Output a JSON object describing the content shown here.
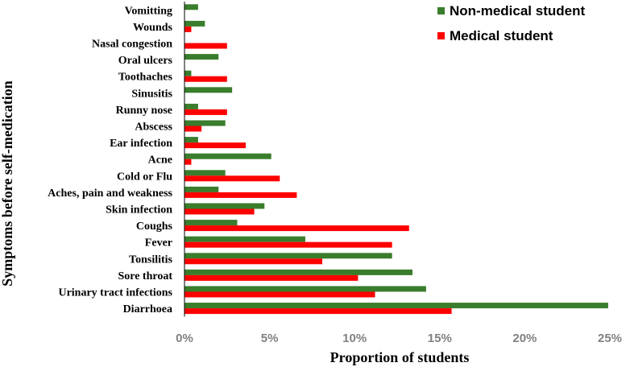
{
  "chart_data": {
    "type": "bar",
    "orientation": "horizontal",
    "categories": [
      "Vomitting",
      "Wounds",
      "Nasal congestion",
      "Oral ulcers",
      "Toothaches",
      "Sinusitis",
      "Runny nose",
      "Abscess",
      "Ear infection",
      "Acne",
      "Cold or Flu",
      "Aches, pain and weakness",
      "Skin infection",
      "Coughs",
      "Fever",
      "Tonsilitis",
      "Sore throat",
      "Urinary tract infections",
      "Diarrhoea"
    ],
    "series": [
      {
        "name": "Non-medical student",
        "color": "#3a7d2c",
        "values": [
          0.8,
          1.2,
          0,
          2.0,
          0.4,
          2.8,
          0.8,
          2.4,
          0.8,
          5.1,
          2.4,
          2.0,
          4.7,
          3.1,
          7.1,
          12.2,
          13.4,
          14.2,
          24.9
        ]
      },
      {
        "name": "Medical student",
        "color": "#ff0000",
        "values": [
          0,
          0.4,
          2.5,
          0,
          2.5,
          0,
          2.5,
          1.0,
          3.6,
          0.4,
          5.6,
          6.6,
          4.1,
          13.2,
          12.2,
          8.1,
          10.2,
          11.2,
          15.7
        ]
      }
    ],
    "xlabel": "Proportion of students",
    "ylabel": "Symptoms before self-medication",
    "xlim": [
      0,
      25
    ],
    "xticks": [
      "0%",
      "5%",
      "10%",
      "15%",
      "20%",
      "25%"
    ],
    "grid": false,
    "legend_position": "top-right"
  }
}
